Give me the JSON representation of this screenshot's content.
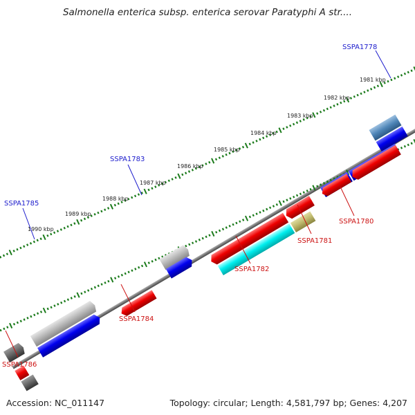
{
  "title": "Salmonella enterica subsp. enterica serovar Paratyphi A str....",
  "footer": {
    "accession": "Accession: NC_011147",
    "summary": "Topology: circular; Length: 4,581,797 bp; Genes: 4,207"
  },
  "colors": {
    "backbone": "#777777",
    "tick": "#1a7a1a",
    "label_blue": "#1a1acc",
    "label_red": "#cc1111"
  },
  "scale_labels": [
    "1981 kbp",
    "1982 kbp",
    "1983 kbp",
    "1984 kbp",
    "1985 kbp",
    "1986 kbp",
    "1987 kbp",
    "1988 kbp",
    "1989 kbp",
    "1990 kbp"
  ],
  "gene_labels": [
    {
      "text": "SSPA1778",
      "color": "#1a1acc"
    },
    {
      "text": "SSPA1783",
      "color": "#1a1acc"
    },
    {
      "text": "SSPA1785",
      "color": "#1a1acc"
    },
    {
      "text": "SSPA1780",
      "color": "#cc1111"
    },
    {
      "text": "SSPA1781",
      "color": "#cc1111"
    },
    {
      "text": "SSPA1782",
      "color": "#cc1111"
    },
    {
      "text": "SSPA1784",
      "color": "#cc1111"
    },
    {
      "text": "SSPA1786",
      "color": "#cc1111"
    }
  ]
}
